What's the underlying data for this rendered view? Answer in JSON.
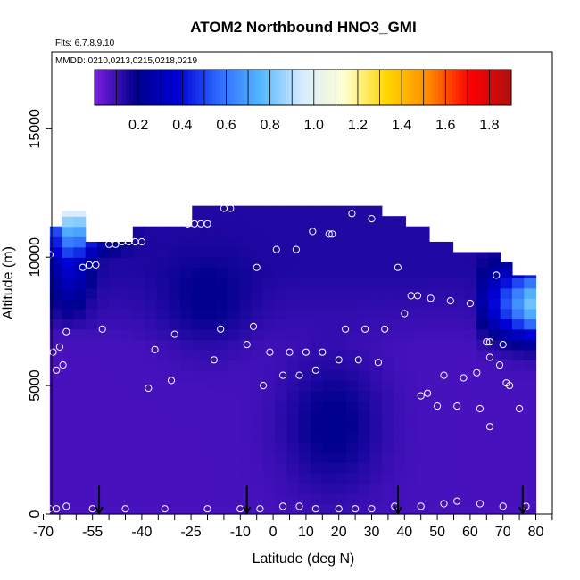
{
  "chart_data": {
    "type": "heatmap",
    "title": "ATOM2 Northbound HNO3_GMI",
    "annotations": {
      "flights": "Flts: 6,7,8,9,10",
      "dates": "MMDD: 0210,0213,0215,0218,0219"
    },
    "xlabel": "Latitude (deg N)",
    "ylabel": "Altitude (m)",
    "xlim": [
      -70,
      85
    ],
    "ylim": [
      0,
      18000
    ],
    "xticks": [
      -70,
      -55,
      -40,
      -25,
      -10,
      0,
      10,
      20,
      30,
      40,
      50,
      60,
      70,
      80
    ],
    "xtick_labels": [
      "-70",
      "-55",
      "-40",
      "-25",
      "-10",
      "0",
      "10",
      "20",
      "30",
      "40",
      "50",
      "60",
      "70",
      "80"
    ],
    "x_minor_ticks": [
      -65,
      -60,
      -50,
      -45,
      -35,
      -30,
      -20,
      -15,
      -5,
      5,
      15,
      25,
      35,
      45,
      55,
      65,
      75,
      85
    ],
    "yticks": [
      0,
      5000,
      10000,
      15000
    ],
    "ytick_labels": [
      "0",
      "5000",
      "10000",
      "15000"
    ],
    "colorbar": {
      "range": [
        0,
        1.9
      ],
      "ticks": [
        0.2,
        0.4,
        0.6,
        0.8,
        1.0,
        1.2,
        1.4,
        1.6,
        1.8
      ],
      "tick_labels": [
        "0.2",
        "0.4",
        "0.6",
        "0.8",
        "1.0",
        "1.2",
        "1.4",
        "1.6",
        "1.8"
      ],
      "colors": [
        "#7a1fe0",
        "#00008c",
        "#0000d6",
        "#2f6cff",
        "#55b8ff",
        "#d8ecff",
        "#ffffd0",
        "#ffd700",
        "#ff8c00",
        "#ff0000",
        "#b01010"
      ]
    },
    "curtain": {
      "x_range": [
        -68,
        80
      ],
      "x_bins": 37,
      "top_altitude": [
        11200,
        11800,
        11800,
        10600,
        10600,
        10600,
        10600,
        11200,
        11200,
        11200,
        11200,
        11200,
        12000,
        12000,
        12000,
        12000,
        12000,
        12000,
        12000,
        12000,
        12000,
        12000,
        12000,
        12000,
        12000,
        12000,
        12000,
        12000,
        11600,
        11600,
        11200,
        11200,
        10600,
        10600,
        10200,
        10200,
        10200,
        10200,
        9800,
        9300,
        9300
      ]
    },
    "flight_points": [
      [
        -68,
        10100
      ],
      [
        -67,
        6300
      ],
      [
        -66,
        5600
      ],
      [
        -65,
        6500
      ],
      [
        -64,
        5800
      ],
      [
        -63,
        7100
      ],
      [
        -58,
        9600
      ],
      [
        -56,
        9700
      ],
      [
        -54,
        9700
      ],
      [
        -52,
        7200
      ],
      [
        -50,
        10500
      ],
      [
        -48,
        10500
      ],
      [
        -46,
        10600
      ],
      [
        -44,
        10600
      ],
      [
        -42,
        10600
      ],
      [
        -40,
        10600
      ],
      [
        -38,
        4900
      ],
      [
        -36,
        6400
      ],
      [
        -31,
        5200
      ],
      [
        -30,
        7000
      ],
      [
        -26,
        11300
      ],
      [
        -24,
        11300
      ],
      [
        -22,
        11300
      ],
      [
        -20,
        11300
      ],
      [
        -18,
        6000
      ],
      [
        -16,
        7200
      ],
      [
        -15,
        11900
      ],
      [
        -13,
        11900
      ],
      [
        -8,
        6600
      ],
      [
        -6,
        7300
      ],
      [
        -5,
        9600
      ],
      [
        -3,
        5000
      ],
      [
        -1,
        6300
      ],
      [
        1,
        10300
      ],
      [
        3,
        5400
      ],
      [
        5,
        6300
      ],
      [
        7,
        10300
      ],
      [
        8,
        5400
      ],
      [
        10,
        6300
      ],
      [
        12,
        11000
      ],
      [
        13,
        5600
      ],
      [
        15,
        6300
      ],
      [
        17,
        10900
      ],
      [
        18,
        10900
      ],
      [
        20,
        6000
      ],
      [
        22,
        7200
      ],
      [
        24,
        11700
      ],
      [
        26,
        6000
      ],
      [
        28,
        7200
      ],
      [
        30,
        11500
      ],
      [
        32,
        5900
      ],
      [
        34,
        7200
      ],
      [
        38,
        9600
      ],
      [
        40,
        7800
      ],
      [
        42,
        8500
      ],
      [
        44,
        8500
      ],
      [
        45,
        4600
      ],
      [
        47,
        4700
      ],
      [
        48,
        8400
      ],
      [
        50,
        4200
      ],
      [
        52,
        5400
      ],
      [
        54,
        8300
      ],
      [
        56,
        4200
      ],
      [
        58,
        5300
      ],
      [
        60,
        8200
      ],
      [
        62,
        5500
      ],
      [
        63,
        4100
      ],
      [
        65,
        6700
      ],
      [
        66,
        6700
      ],
      [
        66,
        6100
      ],
      [
        66,
        3400
      ],
      [
        68,
        9300
      ],
      [
        69,
        5800
      ],
      [
        70,
        6600
      ],
      [
        71,
        5100
      ],
      [
        72,
        5000
      ],
      [
        75,
        4100
      ],
      [
        -68,
        200
      ],
      [
        -66,
        200
      ],
      [
        -63,
        300
      ],
      [
        -55,
        200
      ],
      [
        -45,
        200
      ],
      [
        -33,
        200
      ],
      [
        -20,
        200
      ],
      [
        -10,
        200
      ],
      [
        -4,
        200
      ],
      [
        3,
        300
      ],
      [
        8,
        300
      ],
      [
        13,
        200
      ],
      [
        20,
        200
      ],
      [
        25,
        200
      ],
      [
        30,
        200
      ],
      [
        37,
        300
      ],
      [
        45,
        300
      ],
      [
        52,
        400
      ],
      [
        56,
        500
      ],
      [
        63,
        400
      ],
      [
        70,
        300
      ],
      [
        77,
        300
      ]
    ],
    "arrows_x": [
      -53,
      -8,
      38,
      76
    ]
  }
}
